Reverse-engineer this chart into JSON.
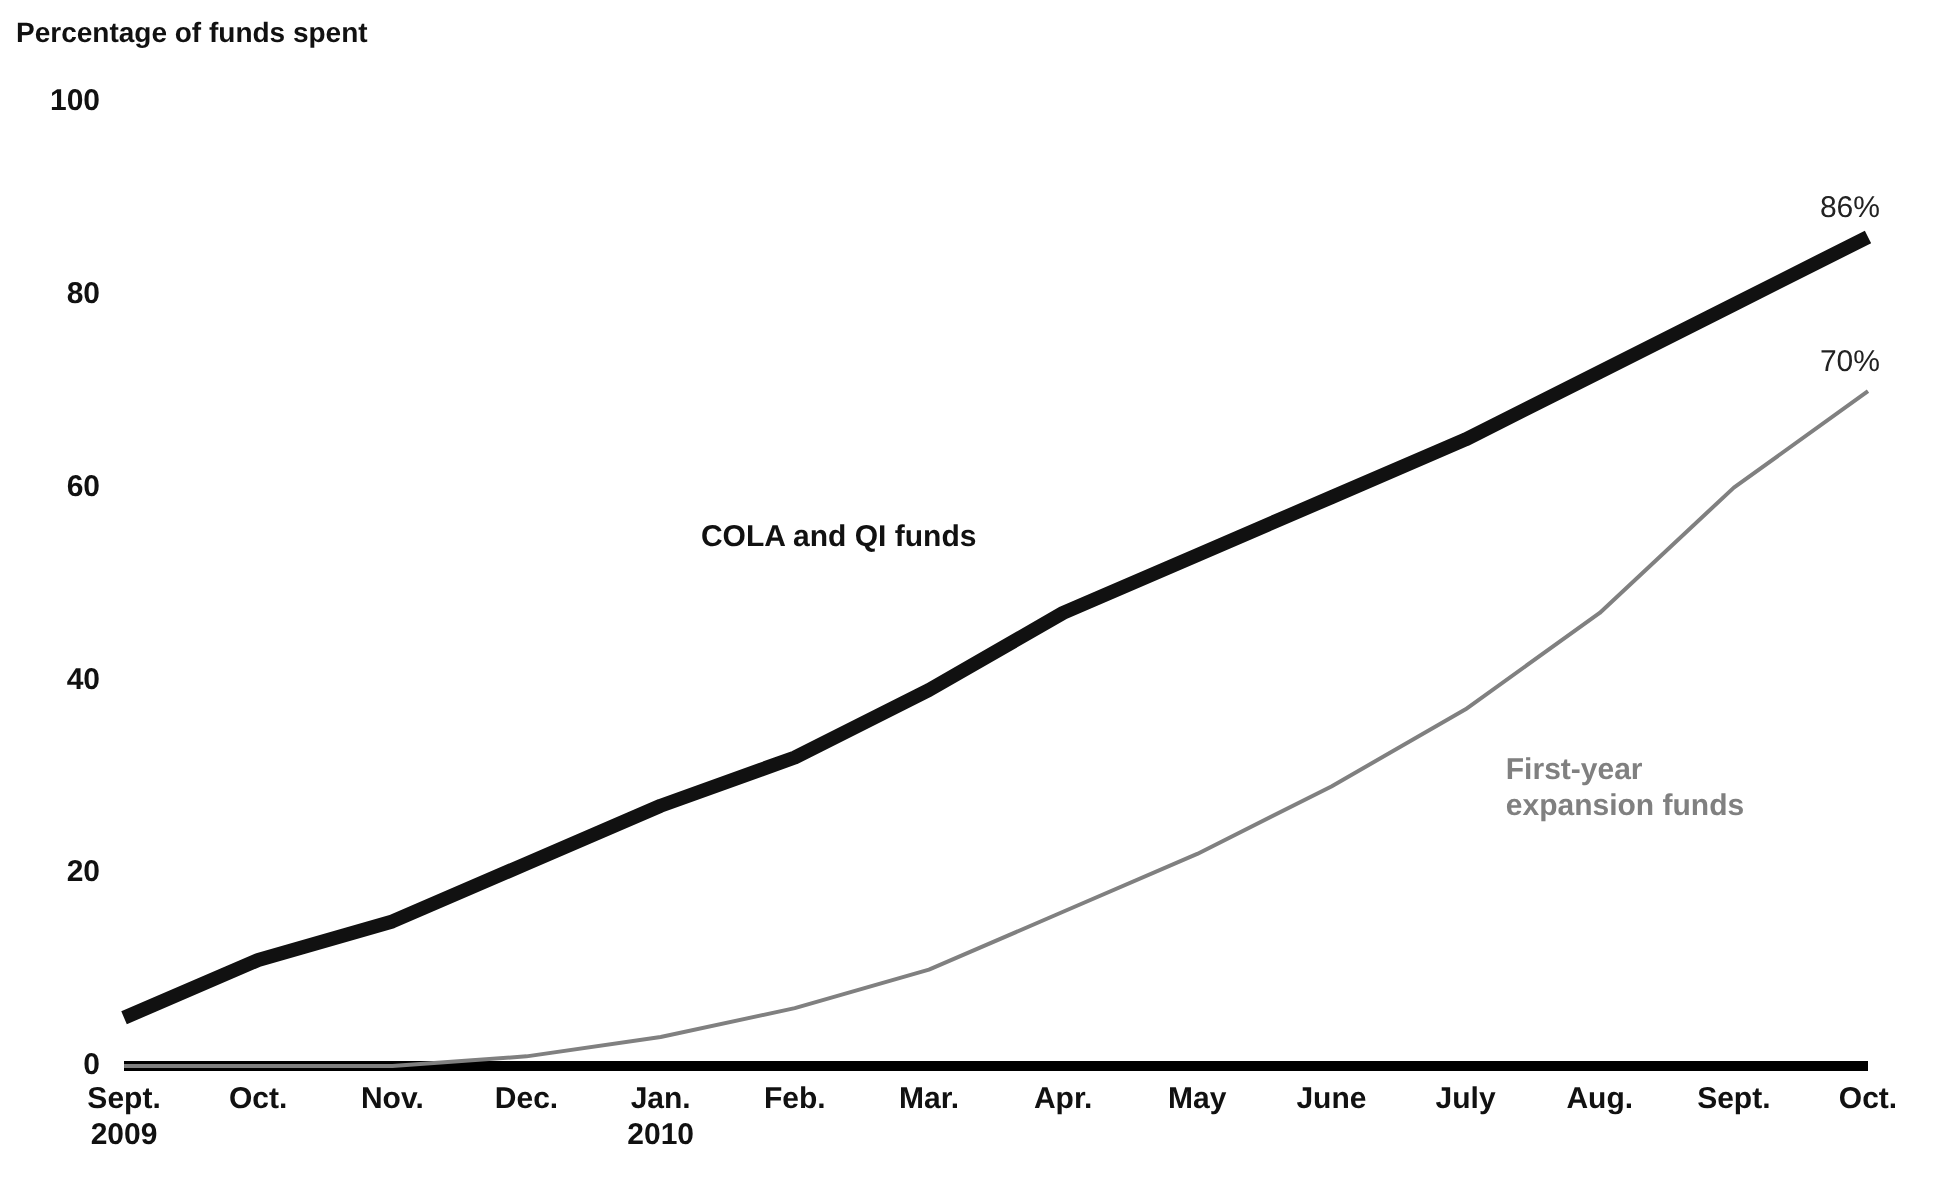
{
  "chart_data": {
    "type": "line",
    "ylabel": "Percentage of funds spent",
    "categories": [
      "Sept.\n2009",
      "Oct.",
      "Nov.",
      "Dec.",
      "Jan.\n2010",
      "Feb.",
      "Mar.",
      "Apr.",
      "May",
      "June",
      "July",
      "Aug.",
      "Sept.",
      "Oct."
    ],
    "series": [
      {
        "name": "COLA and QI funds",
        "color": "#111111",
        "values": [
          5,
          11,
          15,
          21,
          27,
          32,
          39,
          47,
          53,
          59,
          65,
          72,
          79,
          86
        ],
        "value_labels": [
          null,
          null,
          null,
          null,
          null,
          null,
          null,
          null,
          null,
          null,
          null,
          null,
          null,
          "86%"
        ]
      },
      {
        "name": "First-year\nexpansion funds",
        "color": "#808080",
        "values": [
          0,
          0,
          0,
          1,
          3,
          6,
          10,
          16,
          22,
          29,
          37,
          47,
          60,
          70
        ],
        "value_labels": [
          null,
          null,
          null,
          null,
          null,
          null,
          null,
          null,
          null,
          null,
          null,
          null,
          null,
          "70%"
        ]
      }
    ],
    "ylim": [
      0,
      100
    ],
    "yticks": [
      0,
      20,
      40,
      60,
      80,
      100
    ],
    "grid": false,
    "legend": false,
    "marker": "none",
    "line_style": "solid"
  }
}
